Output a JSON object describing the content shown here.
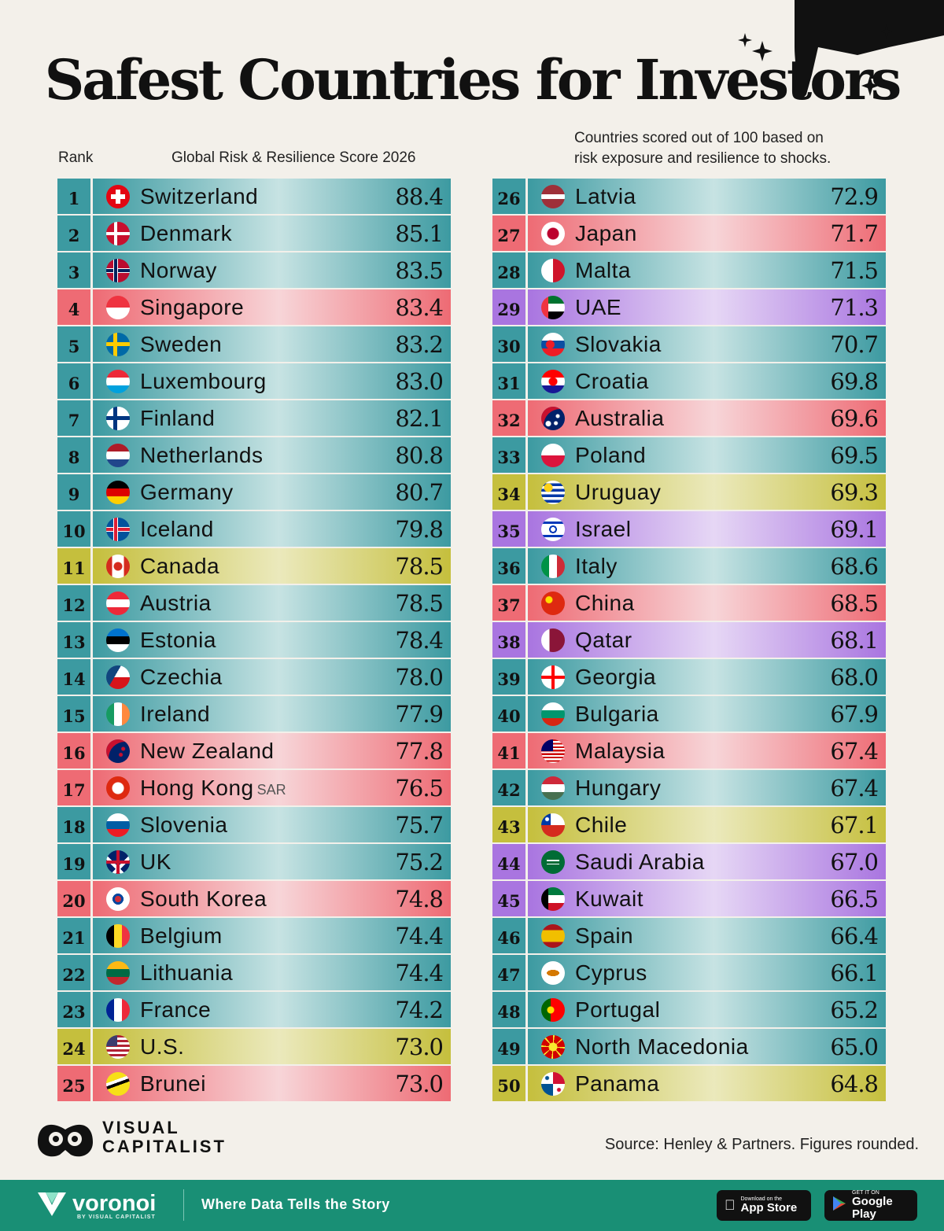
{
  "title": "Safest Countries for Investors",
  "headers": {
    "rank": "Rank",
    "score": "Global Risk & Resilience Score 2026",
    "note_line1": "Countries scored out of 100 based on",
    "note_line2": "risk exposure and resilience to shocks."
  },
  "chart_data": {
    "type": "table",
    "columns": [
      "Rank",
      "Country",
      "Global Risk & Resilience Score 2026"
    ],
    "region_colors": {
      "europe": "#3c9aa1",
      "asia_pacific": "#ee6b74",
      "americas": "#c5bf3d",
      "middle_east": "#a975e0"
    },
    "rows": [
      {
        "rank": "1",
        "country": "Switzerland",
        "score": 88.4,
        "region": "europe",
        "flag": "swiss-flag-icon"
      },
      {
        "rank": "2",
        "country": "Denmark",
        "score": 85.1,
        "region": "europe",
        "flag": "danish-flag-icon"
      },
      {
        "rank": "3",
        "country": "Norway",
        "score": 83.5,
        "region": "europe",
        "flag": "norwegian-flag-icon"
      },
      {
        "rank": "4",
        "country": "Singapore",
        "score": 83.4,
        "region": "asia_pacific",
        "flag": "singapore-flag-icon"
      },
      {
        "rank": "5",
        "country": "Sweden",
        "score": 83.2,
        "region": "europe",
        "flag": "swedish-flag-icon"
      },
      {
        "rank": "6",
        "country": "Luxembourg",
        "score": 83.0,
        "region": "europe",
        "flag": "luxembourg-flag-icon"
      },
      {
        "rank": "7",
        "country": "Finland",
        "score": 82.1,
        "region": "europe",
        "flag": "finnish-flag-icon"
      },
      {
        "rank": "8",
        "country": "Netherlands",
        "score": 80.8,
        "region": "europe",
        "flag": "dutch-flag-icon"
      },
      {
        "rank": "9",
        "country": "Germany",
        "score": 80.7,
        "region": "europe",
        "flag": "german-flag-icon"
      },
      {
        "rank": "10",
        "country": "Iceland",
        "score": 79.8,
        "region": "europe",
        "flag": "icelandic-flag-icon"
      },
      {
        "rank": "11",
        "country": "Canada",
        "score": 78.5,
        "region": "americas",
        "flag": "canadian-flag-icon"
      },
      {
        "rank": "12",
        "country": "Austria",
        "score": 78.5,
        "region": "europe",
        "flag": "austrian-flag-icon"
      },
      {
        "rank": "13",
        "country": "Estonia",
        "score": 78.4,
        "region": "europe",
        "flag": "estonian-flag-icon"
      },
      {
        "rank": "14",
        "country": "Czechia",
        "score": 78.0,
        "region": "europe",
        "flag": "czech-flag-icon"
      },
      {
        "rank": "15",
        "country": "Ireland",
        "score": 77.9,
        "region": "europe",
        "flag": "irish-flag-icon"
      },
      {
        "rank": "16",
        "country": "New Zealand",
        "score": 77.8,
        "region": "asia_pacific",
        "flag": "new-zealand-flag-icon"
      },
      {
        "rank": "17",
        "country": "Hong Kong",
        "suffix": "SAR",
        "score": 76.5,
        "region": "asia_pacific",
        "flag": "hong-kong-flag-icon"
      },
      {
        "rank": "18",
        "country": "Slovenia",
        "score": 75.7,
        "region": "europe",
        "flag": "slovenian-flag-icon"
      },
      {
        "rank": "19",
        "country": "UK",
        "score": 75.2,
        "region": "europe",
        "flag": "uk-flag-icon"
      },
      {
        "rank": "20",
        "country": "South Korea",
        "score": 74.8,
        "region": "asia_pacific",
        "flag": "south-korean-flag-icon"
      },
      {
        "rank": "21",
        "country": "Belgium",
        "score": 74.4,
        "region": "europe",
        "flag": "belgian-flag-icon"
      },
      {
        "rank": "22",
        "country": "Lithuania",
        "score": 74.4,
        "region": "europe",
        "flag": "lithuanian-flag-icon"
      },
      {
        "rank": "23",
        "country": "France",
        "score": 74.2,
        "region": "europe",
        "flag": "french-flag-icon"
      },
      {
        "rank": "24",
        "country": "U.S.",
        "score": 73.0,
        "region": "americas",
        "flag": "us-flag-icon"
      },
      {
        "rank": "25",
        "country": "Brunei",
        "score": 73.0,
        "region": "asia_pacific",
        "flag": "brunei-flag-icon"
      },
      {
        "rank": "26",
        "country": "Latvia",
        "score": 72.9,
        "region": "europe",
        "flag": "latvian-flag-icon"
      },
      {
        "rank": "27",
        "country": "Japan",
        "score": 71.7,
        "region": "asia_pacific",
        "flag": "japanese-flag-icon"
      },
      {
        "rank": "28",
        "country": "Malta",
        "score": 71.5,
        "region": "europe",
        "flag": "maltese-flag-icon"
      },
      {
        "rank": "29",
        "country": "UAE",
        "score": 71.3,
        "region": "middle_east",
        "flag": "uae-flag-icon"
      },
      {
        "rank": "30",
        "country": "Slovakia",
        "score": 70.7,
        "region": "europe",
        "flag": "slovak-flag-icon"
      },
      {
        "rank": "31",
        "country": "Croatia",
        "score": 69.8,
        "region": "europe",
        "flag": "croatian-flag-icon"
      },
      {
        "rank": "32",
        "country": "Australia",
        "score": 69.6,
        "region": "asia_pacific",
        "flag": "australian-flag-icon"
      },
      {
        "rank": "33",
        "country": "Poland",
        "score": 69.5,
        "region": "europe",
        "flag": "polish-flag-icon"
      },
      {
        "rank": "34",
        "country": "Uruguay",
        "score": 69.3,
        "region": "americas",
        "flag": "uruguayan-flag-icon"
      },
      {
        "rank": "35",
        "country": "Israel",
        "score": 69.1,
        "region": "middle_east",
        "flag": "israeli-flag-icon"
      },
      {
        "rank": "36",
        "country": "Italy",
        "score": 68.6,
        "region": "europe",
        "flag": "italian-flag-icon"
      },
      {
        "rank": "37",
        "country": "China",
        "score": 68.5,
        "region": "asia_pacific",
        "flag": "chinese-flag-icon"
      },
      {
        "rank": "38",
        "country": "Qatar",
        "score": 68.1,
        "region": "middle_east",
        "flag": "qatari-flag-icon"
      },
      {
        "rank": "39",
        "country": "Georgia",
        "score": 68.0,
        "region": "europe",
        "flag": "georgian-flag-icon"
      },
      {
        "rank": "40",
        "country": "Bulgaria",
        "score": 67.9,
        "region": "europe",
        "flag": "bulgarian-flag-icon"
      },
      {
        "rank": "41",
        "country": "Malaysia",
        "score": 67.4,
        "region": "asia_pacific",
        "flag": "malaysian-flag-icon"
      },
      {
        "rank": "42",
        "country": "Hungary",
        "score": 67.4,
        "region": "europe",
        "flag": "hungarian-flag-icon"
      },
      {
        "rank": "43",
        "country": "Chile",
        "score": 67.1,
        "region": "americas",
        "flag": "chilean-flag-icon"
      },
      {
        "rank": "44",
        "country": "Saudi Arabia",
        "score": 67.0,
        "region": "middle_east",
        "flag": "saudi-flag-icon"
      },
      {
        "rank": "45",
        "country": "Kuwait",
        "score": 66.5,
        "region": "middle_east",
        "flag": "kuwaiti-flag-icon"
      },
      {
        "rank": "46",
        "country": "Spain",
        "score": 66.4,
        "region": "europe",
        "flag": "spanish-flag-icon"
      },
      {
        "rank": "47",
        "country": "Cyprus",
        "score": 66.1,
        "region": "europe",
        "flag": "cypriot-flag-icon"
      },
      {
        "rank": "48",
        "country": "Portugal",
        "score": 65.2,
        "region": "europe",
        "flag": "portuguese-flag-icon"
      },
      {
        "rank": "49",
        "country": "North Macedonia",
        "score": 65.0,
        "region": "europe",
        "flag": "north-macedonian-flag-icon"
      },
      {
        "rank": "50",
        "country": "Panama",
        "score": 64.8,
        "region": "americas",
        "flag": "panamanian-flag-icon"
      }
    ]
  },
  "branding": {
    "logo_line1": "VISUAL",
    "logo_line2": "CAPITALIST",
    "source": "Source: Henley & Partners. Figures rounded."
  },
  "footer": {
    "brand": "voronoi",
    "brand_sub": "BY VISUAL CAPITALIST",
    "tagline": "Where Data Tells the Story",
    "appstore_small": "Download on the",
    "appstore_big": "App Store",
    "googleplay_small": "GET IT ON",
    "googleplay_big": "Google Play",
    "bg_color": "#198f75"
  }
}
